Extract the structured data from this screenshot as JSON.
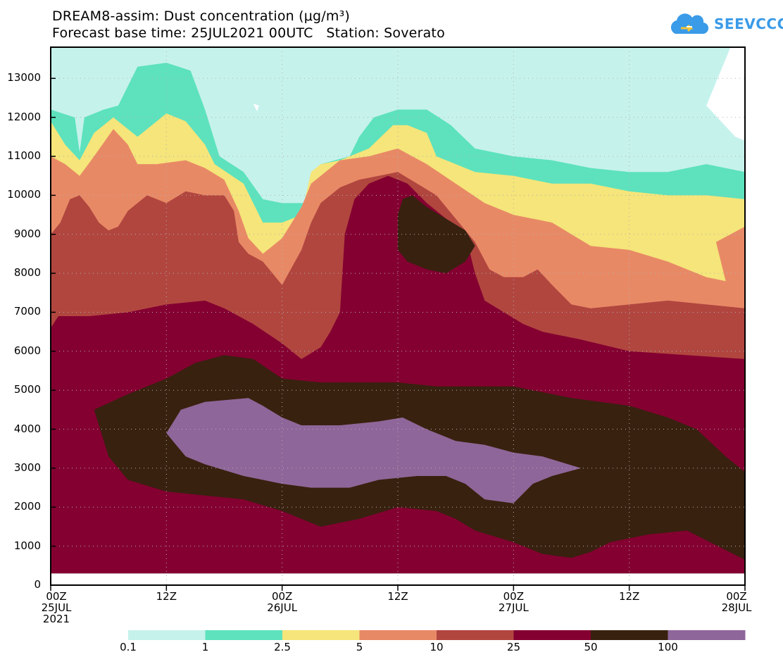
{
  "chart_data": {
    "type": "heatmap",
    "title": "DREAM8-assim: Dust concentration (μg/m³)",
    "subtitle": "Forecast base time: 25JUL2021 00UTC   Station: Soverato",
    "xlabel": "",
    "ylabel": "",
    "x_unit": "hours since 25JUL2021 00UTC",
    "y_unit": "m",
    "xlim": [
      0,
      72
    ],
    "ylim": [
      0,
      13800
    ],
    "y_ticks": [
      0,
      1000,
      2000,
      3000,
      4000,
      5000,
      6000,
      7000,
      8000,
      9000,
      10000,
      11000,
      12000,
      13000
    ],
    "x_ticks": [
      {
        "x": 0,
        "lines": [
          "00Z",
          "25JUL",
          "2021"
        ]
      },
      {
        "x": 12,
        "lines": [
          "12Z"
        ]
      },
      {
        "x": 24,
        "lines": [
          "00Z",
          "26JUL"
        ]
      },
      {
        "x": 36,
        "lines": [
          "12Z"
        ]
      },
      {
        "x": 48,
        "lines": [
          "00Z",
          "27JUL"
        ]
      },
      {
        "x": 60,
        "lines": [
          "12Z"
        ]
      },
      {
        "x": 72,
        "lines": [
          "00Z",
          "28JUL"
        ]
      }
    ],
    "grid": true,
    "legend": {
      "position": "bottom",
      "labels": [
        "0.1",
        "1",
        "2.5",
        "5",
        "10",
        "25",
        "50",
        "100"
      ],
      "colors": [
        "#c6f2ec",
        "#5de2bd",
        "#f5e57a",
        "#e88966",
        "#b1463f",
        "#840031",
        "#38210f",
        "#8f6699"
      ]
    },
    "levels": [
      {
        "label": "≥0.1",
        "color": "#c6f2ec",
        "polygon": [
          [
            0,
            13800
          ],
          [
            70.5,
            13800
          ],
          [
            68,
            12300
          ],
          [
            71,
            11500
          ],
          [
            72,
            11400
          ],
          [
            72,
            300
          ],
          [
            0,
            300
          ]
        ]
      },
      {
        "label": "≥1",
        "color": "#5de2bd",
        "polygon": [
          [
            0,
            12200
          ],
          [
            2.5,
            12000
          ],
          [
            3,
            11100
          ],
          [
            3.5,
            12000
          ],
          [
            5.5,
            12200
          ],
          [
            7,
            12300
          ],
          [
            9,
            13300
          ],
          [
            12,
            13400
          ],
          [
            14.5,
            13200
          ],
          [
            16,
            12200
          ],
          [
            17.5,
            11000
          ],
          [
            20,
            10600
          ],
          [
            22,
            9900
          ],
          [
            24,
            9800
          ],
          [
            27,
            9800
          ],
          [
            28,
            10800
          ],
          [
            31,
            11000
          ],
          [
            32,
            11500
          ],
          [
            33.5,
            12000
          ],
          [
            36,
            12200
          ],
          [
            39,
            12200
          ],
          [
            41.5,
            11800
          ],
          [
            44,
            11200
          ],
          [
            48,
            11000
          ],
          [
            52,
            10900
          ],
          [
            56,
            10700
          ],
          [
            60,
            10600
          ],
          [
            64,
            10600
          ],
          [
            68,
            10800
          ],
          [
            72,
            10600
          ],
          [
            72,
            300
          ],
          [
            0,
            300
          ]
        ]
      },
      {
        "label": "≥2.5",
        "color": "#f5e57a",
        "polygon": [
          [
            0,
            11900
          ],
          [
            1.5,
            11300
          ],
          [
            3,
            10900
          ],
          [
            4.5,
            11600
          ],
          [
            6.5,
            12000
          ],
          [
            9,
            11500
          ],
          [
            11,
            11900
          ],
          [
            12,
            12100
          ],
          [
            14,
            11900
          ],
          [
            16,
            11300
          ],
          [
            17,
            10800
          ],
          [
            20,
            10300
          ],
          [
            21,
            9800
          ],
          [
            22,
            9300
          ],
          [
            24,
            9300
          ],
          [
            26,
            9500
          ],
          [
            27,
            10600
          ],
          [
            28,
            10800
          ],
          [
            30,
            10900
          ],
          [
            33,
            11200
          ],
          [
            35.5,
            11800
          ],
          [
            37,
            11800
          ],
          [
            39,
            11600
          ],
          [
            40,
            11000
          ],
          [
            44,
            10600
          ],
          [
            48,
            10500
          ],
          [
            52,
            10300
          ],
          [
            56,
            10300
          ],
          [
            60,
            10100
          ],
          [
            64,
            10000
          ],
          [
            68,
            10000
          ],
          [
            72,
            9900
          ],
          [
            72,
            300
          ],
          [
            0,
            2050
          ],
          [
            0,
            2600
          ]
        ]
      },
      {
        "label": "≥5",
        "color": "#e88966",
        "polygon": [
          [
            0,
            11000
          ],
          [
            1.5,
            10800
          ],
          [
            3,
            10500
          ],
          [
            4.5,
            11000
          ],
          [
            6.5,
            11700
          ],
          [
            8,
            11300
          ],
          [
            9,
            10800
          ],
          [
            11,
            10800
          ],
          [
            14,
            10900
          ],
          [
            16,
            10700
          ],
          [
            18,
            10400
          ],
          [
            19.5,
            9600
          ],
          [
            20.5,
            8900
          ],
          [
            22,
            8500
          ],
          [
            24,
            8900
          ],
          [
            26,
            9700
          ],
          [
            27,
            10300
          ],
          [
            30,
            10900
          ],
          [
            33,
            11000
          ],
          [
            36,
            11200
          ],
          [
            39,
            10800
          ],
          [
            42,
            10300
          ],
          [
            45,
            9800
          ],
          [
            48,
            9500
          ],
          [
            52,
            9300
          ],
          [
            56,
            8700
          ],
          [
            60,
            8600
          ],
          [
            64,
            8300
          ],
          [
            68,
            7900
          ],
          [
            70,
            7800
          ],
          [
            69,
            8800
          ],
          [
            72,
            9200
          ],
          [
            72,
            300
          ],
          [
            0,
            1800
          ]
        ]
      },
      {
        "label": "≥10",
        "color": "#b1463f",
        "polygon": [
          [
            0,
            9000
          ],
          [
            1,
            9300
          ],
          [
            2,
            9900
          ],
          [
            3,
            10000
          ],
          [
            4,
            9700
          ],
          [
            5,
            9300
          ],
          [
            6,
            9100
          ],
          [
            7,
            9200
          ],
          [
            8,
            9600
          ],
          [
            9,
            9800
          ],
          [
            10,
            10000
          ],
          [
            12,
            9800
          ],
          [
            14,
            10100
          ],
          [
            16,
            10000
          ],
          [
            18,
            10000
          ],
          [
            19,
            9600
          ],
          [
            19.5,
            8800
          ],
          [
            20.5,
            8500
          ],
          [
            22,
            8300
          ],
          [
            23,
            8000
          ],
          [
            24,
            7700
          ],
          [
            26,
            8600
          ],
          [
            27,
            9300
          ],
          [
            28,
            9800
          ],
          [
            30,
            10200
          ],
          [
            32,
            10400
          ],
          [
            34,
            10500
          ],
          [
            36,
            10600
          ],
          [
            38,
            10300
          ],
          [
            40,
            10000
          ],
          [
            42,
            9400
          ],
          [
            44,
            8800
          ],
          [
            45.5,
            8100
          ],
          [
            47,
            7900
          ],
          [
            49,
            7900
          ],
          [
            50.5,
            8100
          ],
          [
            52,
            7700
          ],
          [
            54,
            7200
          ],
          [
            56,
            7100
          ],
          [
            60,
            7200
          ],
          [
            64,
            7300
          ],
          [
            68,
            7200
          ],
          [
            72,
            7100
          ],
          [
            72,
            300
          ],
          [
            0,
            2600
          ]
        ]
      },
      {
        "label": "≥25",
        "color": "#840031",
        "polygon": [
          [
            0,
            6600
          ],
          [
            0.8,
            6900
          ],
          [
            4,
            6900
          ],
          [
            8,
            7000
          ],
          [
            12,
            7200
          ],
          [
            16,
            7300
          ],
          [
            18,
            7100
          ],
          [
            21,
            6700
          ],
          [
            24,
            6200
          ],
          [
            26,
            5800
          ],
          [
            28,
            6100
          ],
          [
            29,
            6500
          ],
          [
            30,
            7000
          ],
          [
            30.5,
            9000
          ],
          [
            31.5,
            9900
          ],
          [
            33,
            10300
          ],
          [
            35,
            10500
          ],
          [
            37,
            10300
          ],
          [
            39,
            9800
          ],
          [
            41,
            9400
          ],
          [
            43,
            9000
          ],
          [
            44,
            8000
          ],
          [
            45,
            7300
          ],
          [
            47,
            7000
          ],
          [
            49,
            6700
          ],
          [
            51,
            6500
          ],
          [
            55,
            6300
          ],
          [
            60,
            6000
          ],
          [
            66,
            5900
          ],
          [
            72,
            5800
          ],
          [
            72,
            300
          ],
          [
            0,
            300
          ]
        ]
      },
      {
        "label": "≥50",
        "color": "#38210f",
        "polygon": [
          [
            4.5,
            4500
          ],
          [
            8,
            4900
          ],
          [
            12,
            5300
          ],
          [
            15,
            5700
          ],
          [
            18,
            5900
          ],
          [
            21,
            5800
          ],
          [
            24,
            5300
          ],
          [
            28,
            5200
          ],
          [
            32,
            5200
          ],
          [
            36,
            5200
          ],
          [
            40,
            5100
          ],
          [
            44,
            5100
          ],
          [
            48,
            5100
          ],
          [
            54,
            4800
          ],
          [
            60,
            4600
          ],
          [
            64,
            4300
          ],
          [
            67,
            4000
          ],
          [
            70,
            3300
          ],
          [
            72,
            2900
          ],
          [
            72,
            650
          ],
          [
            70,
            900
          ],
          [
            66,
            1400
          ],
          [
            62,
            1300
          ],
          [
            58,
            1100
          ],
          [
            56,
            850
          ],
          [
            54,
            700
          ],
          [
            51,
            800
          ],
          [
            48,
            1100
          ],
          [
            44,
            1400
          ],
          [
            42,
            1700
          ],
          [
            40,
            1900
          ],
          [
            36,
            2000
          ],
          [
            32,
            1700
          ],
          [
            28,
            1500
          ],
          [
            24,
            1900
          ],
          [
            20,
            2200
          ],
          [
            16,
            2300
          ],
          [
            12,
            2400
          ],
          [
            8,
            2700
          ],
          [
            6,
            3300
          ]
        ]
      },
      {
        "label": "≥50",
        "color": "#38210f",
        "polygon": [
          [
            36,
            8600
          ],
          [
            36,
            9500
          ],
          [
            36.5,
            9900
          ],
          [
            37.5,
            10000
          ],
          [
            39,
            9700
          ],
          [
            41,
            9400
          ],
          [
            43,
            9100
          ],
          [
            44,
            8700
          ],
          [
            43,
            8300
          ],
          [
            41,
            8000
          ],
          [
            39,
            8100
          ],
          [
            37,
            8300
          ]
        ]
      },
      {
        "label": "≥100",
        "color": "#8f6699",
        "polygon": [
          [
            12,
            3900
          ],
          [
            13.5,
            4500
          ],
          [
            16,
            4700
          ],
          [
            20.5,
            4800
          ],
          [
            22,
            4600
          ],
          [
            24,
            4300
          ],
          [
            26,
            4100
          ],
          [
            30,
            4100
          ],
          [
            34,
            4200
          ],
          [
            36.5,
            4300
          ],
          [
            39,
            4000
          ],
          [
            42,
            3700
          ],
          [
            45,
            3600
          ],
          [
            48,
            3400
          ],
          [
            51,
            3300
          ],
          [
            55,
            3000
          ],
          [
            52,
            2800
          ],
          [
            50,
            2600
          ],
          [
            48,
            2100
          ],
          [
            45,
            2200
          ],
          [
            43,
            2600
          ],
          [
            41,
            2800
          ],
          [
            38,
            2800
          ],
          [
            34,
            2700
          ],
          [
            31,
            2500
          ],
          [
            27,
            2500
          ],
          [
            24,
            2600
          ],
          [
            20,
            2800
          ],
          [
            16,
            3100
          ],
          [
            14,
            3300
          ],
          [
            13,
            3600
          ]
        ]
      },
      {
        "label": "<0.1 (white)",
        "color": "#ffffff",
        "polygon": [
          [
            21,
            12350
          ],
          [
            21.6,
            12300
          ],
          [
            21.4,
            12150
          ]
        ]
      }
    ]
  }
}
